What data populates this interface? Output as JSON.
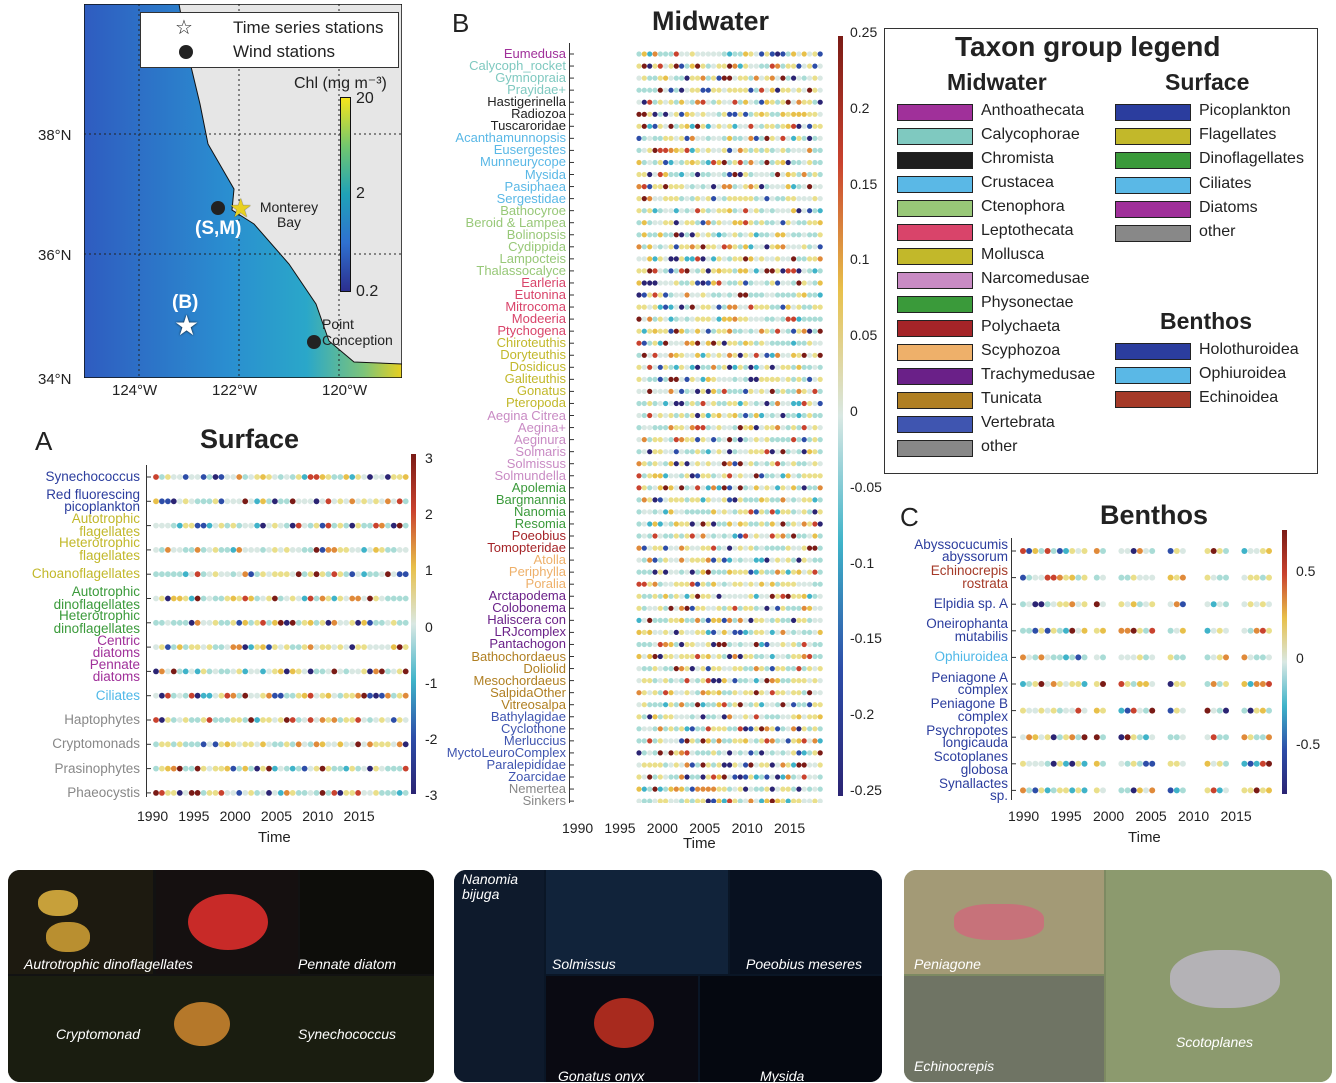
{
  "map": {
    "legend": {
      "time_series": "Time series stations",
      "wind": "Wind stations"
    },
    "colorbar_title": "Chl (mg m⁻³)",
    "colorbar_ticks": [
      "20",
      "2",
      "0.2"
    ],
    "lat_labels": [
      "38°N",
      "36°N",
      "34°N"
    ],
    "lon_labels": [
      "124°W",
      "122°W",
      "120°W"
    ],
    "station_SM": "(S,M)",
    "station_B": "(B)",
    "place_monterey": "Monterey Bay",
    "place_conception": "Point Conception"
  },
  "surface": {
    "letter": "A",
    "title": "Surface",
    "xlabel": "Time",
    "xticks": [
      "1990",
      "1995",
      "2000",
      "2005",
      "2010",
      "2015"
    ],
    "cbar_ticks": [
      "3",
      "2",
      "1",
      "0",
      "-1",
      "-2",
      "-3"
    ],
    "taxa": [
      {
        "name": "Synechococcus",
        "color": "#2b3d9e"
      },
      {
        "name": "Red fluorescing picoplankton",
        "color": "#2b3d9e"
      },
      {
        "name": "Autotrophic flagellates",
        "color": "#c2b82a"
      },
      {
        "name": "Heterotrophic flagellates",
        "color": "#c2b82a"
      },
      {
        "name": "Choanoflagellates",
        "color": "#c2b82a"
      },
      {
        "name": "Autotrophic dinoflagellates",
        "color": "#3a9a3a"
      },
      {
        "name": "Heterotrophic dinoflagellates",
        "color": "#3a9a3a"
      },
      {
        "name": "Centric diatoms",
        "color": "#a0309a"
      },
      {
        "name": "Pennate diatoms",
        "color": "#a0309a"
      },
      {
        "name": "Ciliates",
        "color": "#4fb8e8"
      },
      {
        "name": "Haptophytes",
        "color": "#888888"
      },
      {
        "name": "Cryptomonads",
        "color": "#888888"
      },
      {
        "name": "Prasinophytes",
        "color": "#888888"
      },
      {
        "name": "Phaeocystis",
        "color": "#888888"
      }
    ]
  },
  "midwater": {
    "letter": "B",
    "title": "Midwater",
    "xlabel": "Time",
    "xticks": [
      "1990",
      "1995",
      "2000",
      "2005",
      "2010",
      "2015"
    ],
    "cbar_ticks": [
      "0.25",
      "0.2",
      "0.15",
      "0.1",
      "0.05",
      "0",
      "-0.05",
      "-0.1",
      "-0.15",
      "-0.2",
      "-0.25"
    ],
    "taxa": [
      {
        "name": "Eumedusa",
        "color": "#a0309a"
      },
      {
        "name": "Calycoph_rocket",
        "color": "#7fc9c0"
      },
      {
        "name": "Gymnopraia",
        "color": "#7fc9c0"
      },
      {
        "name": "Prayidae+",
        "color": "#7fc9c0"
      },
      {
        "name": "Hastigerinella",
        "color": "#222222"
      },
      {
        "name": "Radiozoa",
        "color": "#222222"
      },
      {
        "name": "Tuscaroridae",
        "color": "#222222"
      },
      {
        "name": "Acanthamunnopsis",
        "color": "#5ab8e6"
      },
      {
        "name": "Eusergestes",
        "color": "#5ab8e6"
      },
      {
        "name": "Munneurycope",
        "color": "#5ab8e6"
      },
      {
        "name": "Mysida",
        "color": "#5ab8e6"
      },
      {
        "name": "Pasiphaea",
        "color": "#5ab8e6"
      },
      {
        "name": "Sergestidae",
        "color": "#5ab8e6"
      },
      {
        "name": "Bathocyroe",
        "color": "#98c878"
      },
      {
        "name": "Beroid & Lampea",
        "color": "#98c878"
      },
      {
        "name": "Bolinopsis",
        "color": "#98c878"
      },
      {
        "name": "Cydippida",
        "color": "#98c878"
      },
      {
        "name": "Lampocteis",
        "color": "#98c878"
      },
      {
        "name": "Thalassocalyce",
        "color": "#98c878"
      },
      {
        "name": "Earleria",
        "color": "#d9446a"
      },
      {
        "name": "Eutonina",
        "color": "#d9446a"
      },
      {
        "name": "Mitrocoma",
        "color": "#d9446a"
      },
      {
        "name": "Modeeria",
        "color": "#d9446a"
      },
      {
        "name": "Ptychogena",
        "color": "#d9446a"
      },
      {
        "name": "Chiroteuthis",
        "color": "#c2b82a"
      },
      {
        "name": "Doryteuthis",
        "color": "#c2b82a"
      },
      {
        "name": "Dosidicus",
        "color": "#c2b82a"
      },
      {
        "name": "Galiteuthis",
        "color": "#c2b82a"
      },
      {
        "name": "Gonatus",
        "color": "#c2b82a"
      },
      {
        "name": "Pteropoda",
        "color": "#c2b82a"
      },
      {
        "name": "Aegina Citrea",
        "color": "#c98bc4"
      },
      {
        "name": "Aegina+",
        "color": "#c98bc4"
      },
      {
        "name": "Aeginura",
        "color": "#c98bc4"
      },
      {
        "name": "Solmaris",
        "color": "#c98bc4"
      },
      {
        "name": "Solmissus",
        "color": "#c98bc4"
      },
      {
        "name": "Solmundella",
        "color": "#c98bc4"
      },
      {
        "name": "Apolemia",
        "color": "#3a9a3a"
      },
      {
        "name": "Bargmannia",
        "color": "#3a9a3a"
      },
      {
        "name": "Nanomia",
        "color": "#3a9a3a"
      },
      {
        "name": "Resomia",
        "color": "#3a9a3a"
      },
      {
        "name": "Poeobius",
        "color": "#a52428"
      },
      {
        "name": "Tomopteridae",
        "color": "#a52428"
      },
      {
        "name": "Atolla",
        "color": "#eeb06a"
      },
      {
        "name": "Periphylla",
        "color": "#eeb06a"
      },
      {
        "name": "Poralia",
        "color": "#eeb06a"
      },
      {
        "name": "Arctapodema",
        "color": "#6a2088"
      },
      {
        "name": "Colobonema",
        "color": "#6a2088"
      },
      {
        "name": "Haliscera con",
        "color": "#6a2088"
      },
      {
        "name": "LRJcomplex",
        "color": "#6a2088"
      },
      {
        "name": "Pantachogon",
        "color": "#6a2088"
      },
      {
        "name": "Bathochordaeus",
        "color": "#b07f22"
      },
      {
        "name": "Doliolid",
        "color": "#b07f22"
      },
      {
        "name": "Mesochordaeus",
        "color": "#b07f22"
      },
      {
        "name": "SalpidaOther",
        "color": "#b07f22"
      },
      {
        "name": "Vitreosalpa",
        "color": "#b07f22"
      },
      {
        "name": "Bathylagidae",
        "color": "#3f55b0"
      },
      {
        "name": "Cyclothone",
        "color": "#3f55b0"
      },
      {
        "name": "Merluccius",
        "color": "#3f55b0"
      },
      {
        "name": "MyctoLeuroComplex",
        "color": "#3f55b0"
      },
      {
        "name": "Paralepididae",
        "color": "#3f55b0"
      },
      {
        "name": "Zoarcidae",
        "color": "#3f55b0"
      },
      {
        "name": "Nemertea",
        "color": "#888888"
      },
      {
        "name": "Sinkers",
        "color": "#888888"
      }
    ]
  },
  "benthos": {
    "letter": "C",
    "title": "Benthos",
    "xlabel": "Time",
    "xticks": [
      "1990",
      "1995",
      "2000",
      "2005",
      "2010",
      "2015"
    ],
    "cbar_ticks": [
      "0.5",
      "0",
      "-0.5"
    ],
    "taxa": [
      {
        "name": "Abyssocucumis abyssorum",
        "color": "#2b3d9e"
      },
      {
        "name": "Echinocrepis rostrata",
        "color": "#a53a28"
      },
      {
        "name": "Elpidia sp. A",
        "color": "#2b3d9e"
      },
      {
        "name": "Oneirophanta mutabilis",
        "color": "#2b3d9e"
      },
      {
        "name": "Ophiuroidea",
        "color": "#4fb8e8"
      },
      {
        "name": "Peniagone A complex",
        "color": "#2b3d9e"
      },
      {
        "name": "Peniagone B complex",
        "color": "#2b3d9e"
      },
      {
        "name": "Psychropotes longicauda",
        "color": "#2b3d9e"
      },
      {
        "name": "Scotoplanes globosa",
        "color": "#2b3d9e"
      },
      {
        "name": "Synallactes sp.",
        "color": "#2b3d9e"
      }
    ]
  },
  "legend": {
    "title": "Taxon group legend",
    "midwater_head": "Midwater",
    "surface_head": "Surface",
    "benthos_head": "Benthos",
    "midwater": [
      {
        "label": "Anthoathecata",
        "color": "#a0309a"
      },
      {
        "label": "Calycophorae",
        "color": "#7fc9c0"
      },
      {
        "label": "Chromista",
        "color": "#1e1e1e"
      },
      {
        "label": "Crustacea",
        "color": "#5ab8e6"
      },
      {
        "label": "Ctenophora",
        "color": "#98c878"
      },
      {
        "label": "Leptothecata",
        "color": "#d9446a"
      },
      {
        "label": "Mollusca",
        "color": "#c2b82a"
      },
      {
        "label": "Narcomedusae",
        "color": "#c98bc4"
      },
      {
        "label": "Physonectae",
        "color": "#3a9a3a"
      },
      {
        "label": "Polychaeta",
        "color": "#a52428"
      },
      {
        "label": "Scyphozoa",
        "color": "#eeb06a"
      },
      {
        "label": "Trachymedusae",
        "color": "#6a2088"
      },
      {
        "label": "Tunicata",
        "color": "#b07f22"
      },
      {
        "label": "Vertebrata",
        "color": "#3f55b0"
      },
      {
        "label": "other",
        "color": "#888888"
      }
    ],
    "surface": [
      {
        "label": "Picoplankton",
        "color": "#2b3d9e"
      },
      {
        "label": "Flagellates",
        "color": "#c2b82a"
      },
      {
        "label": "Dinoflagellates",
        "color": "#3a9a3a"
      },
      {
        "label": "Ciliates",
        "color": "#5ab8e6"
      },
      {
        "label": "Diatoms",
        "color": "#a0309a"
      },
      {
        "label": "other",
        "color": "#888888"
      }
    ],
    "benthos": [
      {
        "label": "Holothuroidea",
        "color": "#2b3d9e"
      },
      {
        "label": "Ophiuroidea",
        "color": "#5ab8e6"
      },
      {
        "label": "Echinoidea",
        "color": "#a53a28"
      }
    ]
  },
  "photos": {
    "surface": [
      "Autrotrophic dinoflagellates",
      "Pennate diatom",
      "Cryptomonad",
      "Synechococcus"
    ],
    "midwater": [
      "Nanomia bijuga",
      "Solmissus",
      "Poeobius meseres",
      "Gonatus onyx",
      "Mysida"
    ],
    "benthos": [
      "Peniagone",
      "Echinocrepis",
      "Scotoplanes"
    ]
  }
}
